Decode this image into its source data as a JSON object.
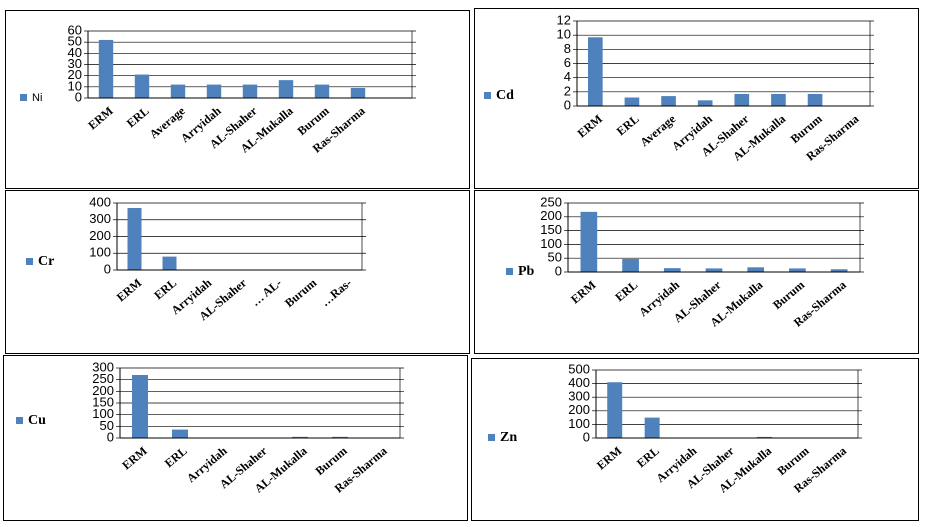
{
  "chart_data": [
    {
      "type": "bar",
      "categories": [
        "ERM",
        "ERL",
        "Average",
        "Arryidah",
        "AL-Shaher",
        "AL-Mukalla",
        "Burum",
        "Ras-Sharma",
        null
      ],
      "series": [
        {
          "name": "Ni",
          "color": "#4f81bd",
          "values": [
            52,
            21,
            12,
            12,
            12,
            16,
            12,
            9,
            null
          ]
        }
      ],
      "ylim": [
        0,
        60
      ],
      "yticks": [
        0,
        10,
        20,
        30,
        40,
        50,
        60
      ],
      "grid": true,
      "legend": "left"
    },
    {
      "type": "bar",
      "categories": [
        "ERM",
        "ERL",
        "Average",
        "Arryidah",
        "AL-Shaher",
        "AL-Mukalla",
        "Burum",
        "Ras-Sharma"
      ],
      "series": [
        {
          "name": "Cd",
          "color": "#4f81bd",
          "values": [
            9.7,
            1.2,
            1.4,
            0.8,
            1.7,
            1.7,
            1.7,
            0
          ]
        }
      ],
      "ylim": [
        0,
        12
      ],
      "yticks": [
        0,
        2,
        4,
        6,
        8,
        10,
        12
      ],
      "grid": true,
      "legend": "left"
    },
    {
      "type": "bar",
      "categories": [
        "ERM",
        "ERL",
        "Arryidah",
        "AL-Shaher",
        "… AL-",
        "Burum",
        "…Ras-"
      ],
      "series": [
        {
          "name": "Cr",
          "color": "#4f81bd",
          "values": [
            370,
            80,
            0,
            0,
            0,
            0,
            0
          ]
        }
      ],
      "ylim": [
        0,
        400
      ],
      "yticks": [
        0,
        100,
        200,
        300,
        400
      ],
      "grid": true,
      "legend": "left"
    },
    {
      "type": "bar",
      "categories": [
        "ERM",
        "ERL",
        "Arryidah",
        "AL-Shaher",
        "AL-Mukalla",
        "Burum",
        "Ras-Sharma"
      ],
      "series": [
        {
          "name": "Pb",
          "color": "#4f81bd",
          "values": [
            218,
            47,
            14,
            13,
            17,
            13,
            10
          ]
        }
      ],
      "ylim": [
        0,
        250
      ],
      "yticks": [
        0,
        50,
        100,
        150,
        200,
        250
      ],
      "grid": true,
      "legend": "left"
    },
    {
      "type": "bar",
      "categories": [
        "ERM",
        "ERL",
        "Arryidah",
        "AL-Shaher",
        "AL-Mukalla",
        "Burum",
        "Ras-Sharma"
      ],
      "series": [
        {
          "name": "Cu",
          "color": "#4f81bd",
          "values": [
            270,
            36,
            0,
            0,
            5,
            5,
            0
          ]
        }
      ],
      "ylim": [
        0,
        300
      ],
      "yticks": [
        0,
        50,
        100,
        150,
        200,
        250,
        300
      ],
      "grid": true,
      "legend": "left"
    },
    {
      "type": "bar",
      "categories": [
        "ERM",
        "ERL",
        "Arryidah",
        "AL-Shaher",
        "AL-Mukalla",
        "Burum",
        "Ras-Sharma"
      ],
      "series": [
        {
          "name": "Zn",
          "color": "#4f81bd",
          "values": [
            410,
            150,
            0,
            0,
            8,
            0,
            0
          ]
        }
      ],
      "ylim": [
        0,
        500
      ],
      "yticks": [
        0,
        100,
        200,
        300,
        400,
        500
      ],
      "grid": true,
      "legend": "left"
    }
  ]
}
